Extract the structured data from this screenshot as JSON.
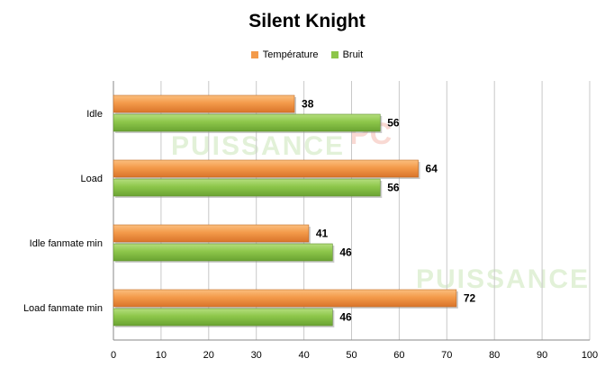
{
  "chart_data": {
    "type": "bar",
    "orientation": "horizontal",
    "title": "Silent Knight",
    "categories": [
      "Idle",
      "Load",
      "Idle fanmate  min",
      "Load fanmate  min"
    ],
    "series": [
      {
        "name": "Température",
        "values": [
          38,
          64,
          41,
          72
        ],
        "color": "#f39a4a"
      },
      {
        "name": "Bruit",
        "values": [
          56,
          56,
          46,
          46
        ],
        "color": "#8dc64a"
      }
    ],
    "xlim": [
      0,
      100
    ],
    "xticks": [
      0,
      10,
      20,
      30,
      40,
      50,
      60,
      70,
      80,
      90,
      100
    ],
    "grid": true,
    "legend_position": "top",
    "data_labels": true
  },
  "watermark": {
    "text": "PUISSANCE PC"
  }
}
